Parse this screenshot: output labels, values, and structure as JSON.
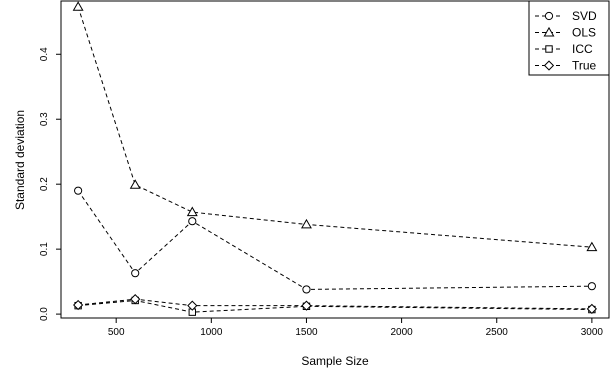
{
  "chart_data": {
    "type": "line",
    "xlabel": "Sample Size",
    "ylabel": "Standard deviation",
    "x": [
      300,
      600,
      900,
      1500,
      3000
    ],
    "xlim": [
      210,
      3090
    ],
    "ylim": [
      -0.006,
      0.482
    ],
    "x_ticks": [
      500,
      1000,
      1500,
      2000,
      2500,
      3000
    ],
    "y_ticks": [
      0.0,
      0.1,
      0.2,
      0.3,
      0.4
    ],
    "x_tick_labels": [
      "500",
      "1000",
      "1500",
      "2000",
      "2500",
      "3000"
    ],
    "y_tick_labels": [
      "0.0",
      "0.1",
      "0.2",
      "0.3",
      "0.4"
    ],
    "grid": false,
    "legend_position": "top-right",
    "line_style": "dashed",
    "series": [
      {
        "name": "SVD",
        "marker": "circle",
        "values": [
          0.19,
          0.063,
          0.143,
          0.038,
          0.043
        ]
      },
      {
        "name": "OLS",
        "marker": "triangle",
        "values": [
          0.473,
          0.199,
          0.157,
          0.138,
          0.103
        ]
      },
      {
        "name": "ICC",
        "marker": "square",
        "values": [
          0.013,
          0.021,
          0.003,
          0.012,
          0.007
        ]
      },
      {
        "name": "True",
        "marker": "diamond",
        "values": [
          0.014,
          0.023,
          0.013,
          0.013,
          0.008
        ]
      }
    ]
  }
}
